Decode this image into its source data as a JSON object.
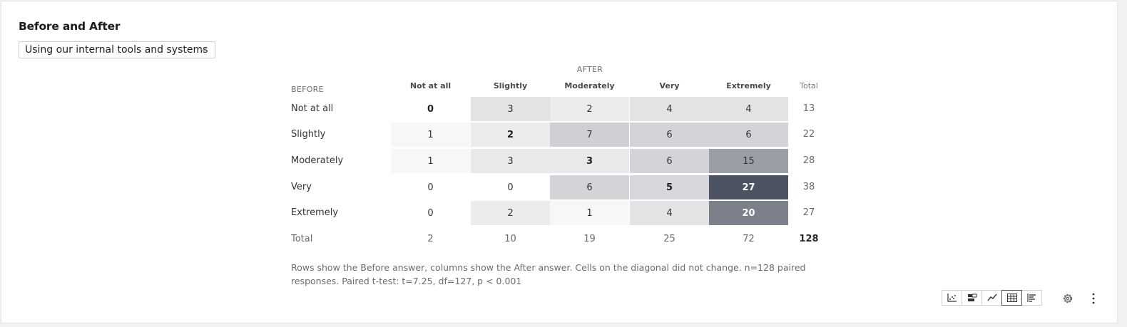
{
  "widget": {
    "title": "Before and After",
    "dropdown_value": "Using our internal tools and systems"
  },
  "table": {
    "after_label": "AFTER",
    "before_label": "BEFORE",
    "total_label": "Total",
    "columns": [
      "Not at all",
      "Slightly",
      "Moderately",
      "Very",
      "Extremely"
    ],
    "rows": [
      {
        "label": "Not at all",
        "values": [
          "0",
          "3",
          "2",
          "4",
          "4"
        ],
        "total": "13"
      },
      {
        "label": "Slightly",
        "values": [
          "1",
          "2",
          "7",
          "6",
          "6"
        ],
        "total": "22"
      },
      {
        "label": "Moderately",
        "values": [
          "1",
          "3",
          "3",
          "6",
          "15"
        ],
        "total": "28"
      },
      {
        "label": "Very",
        "values": [
          "0",
          "0",
          "6",
          "5",
          "27"
        ],
        "total": "38"
      },
      {
        "label": "Extremely",
        "values": [
          "0",
          "2",
          "1",
          "4",
          "20"
        ],
        "total": "27"
      }
    ],
    "column_totals": [
      "2",
      "10",
      "19",
      "25",
      "72"
    ],
    "grand_total": "128"
  },
  "note": "Rows show the Before answer, columns show the After answer. Cells on the diagonal did not change. n=128 paired responses. Paired t-test: t=7.25, df=127, p < 0.001",
  "toolbar": {
    "buttons": [
      "scatter-chart-icon",
      "stacked-bar-icon",
      "line-chart-icon",
      "table-icon",
      "horizontal-bar-icon"
    ],
    "active": "table-icon"
  },
  "colors": {
    "cell_scale": [
      "#f7f7f7",
      "#ececee",
      "#e2e3e5",
      "#d3d4d7",
      "#9a9ea6",
      "#7b808b",
      "#4c5463"
    ]
  }
}
